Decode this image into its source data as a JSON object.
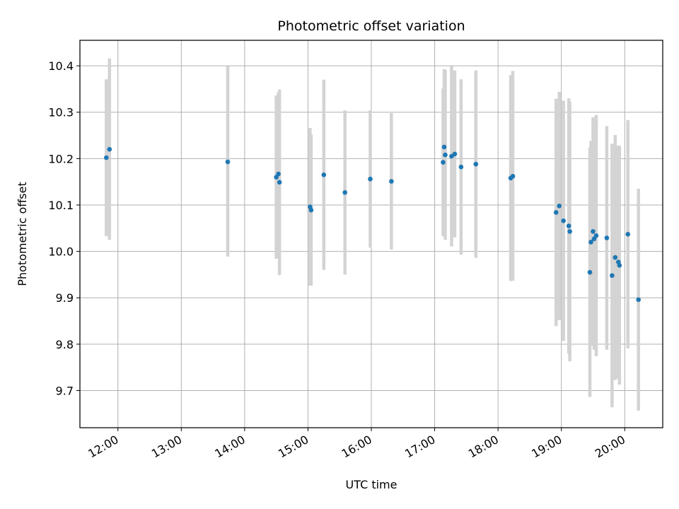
{
  "chart_data": {
    "type": "scatter",
    "title": "Photometric offset variation",
    "xlabel": "UTC time",
    "ylabel": "Photometric offset",
    "x_tick_labels": [
      "12:00",
      "13:00",
      "14:00",
      "15:00",
      "16:00",
      "17:00",
      "18:00",
      "19:00",
      "20:00"
    ],
    "y_tick_labels": [
      "9.7",
      "9.8",
      "9.9",
      "10.0",
      "10.1",
      "10.2",
      "10.3",
      "10.4"
    ],
    "x_ticks_hours": [
      12,
      13,
      14,
      15,
      16,
      17,
      18,
      19,
      20
    ],
    "y_ticks": [
      9.7,
      9.8,
      9.9,
      10.0,
      10.1,
      10.2,
      10.3,
      10.4
    ],
    "xlim_hours": [
      11.4,
      20.6
    ],
    "ylim": [
      9.62,
      10.455
    ],
    "grid": true,
    "point_color": "#1f77b4",
    "errorbar_color": "#d3d3d3",
    "points": [
      {
        "t": "11:49",
        "y": 10.202,
        "lo": 10.033,
        "hi": 10.371
      },
      {
        "t": "11:52",
        "y": 10.22,
        "lo": 10.025,
        "hi": 10.416
      },
      {
        "t": "13:44",
        "y": 10.193,
        "lo": 9.989,
        "hi": 10.399
      },
      {
        "t": "14:30",
        "y": 10.16,
        "lo": 9.984,
        "hi": 10.336
      },
      {
        "t": "14:32",
        "y": 10.167,
        "lo": 9.985,
        "hi": 10.343
      },
      {
        "t": "14:33",
        "y": 10.149,
        "lo": 9.949,
        "hi": 10.349
      },
      {
        "t": "15:02",
        "y": 10.096,
        "lo": 9.926,
        "hi": 10.266
      },
      {
        "t": "15:03",
        "y": 10.089,
        "lo": 9.926,
        "hi": 10.252
      },
      {
        "t": "15:15",
        "y": 10.165,
        "lo": 9.96,
        "hi": 10.37
      },
      {
        "t": "15:35",
        "y": 10.127,
        "lo": 9.95,
        "hi": 10.304
      },
      {
        "t": "15:59",
        "y": 10.156,
        "lo": 10.008,
        "hi": 10.304
      },
      {
        "t": "16:19",
        "y": 10.151,
        "lo": 10.004,
        "hi": 10.298
      },
      {
        "t": "17:08",
        "y": 10.192,
        "lo": 10.033,
        "hi": 10.351
      },
      {
        "t": "17:09",
        "y": 10.225,
        "lo": 10.057,
        "hi": 10.393
      },
      {
        "t": "17:10",
        "y": 10.208,
        "lo": 10.025,
        "hi": 10.391
      },
      {
        "t": "17:16",
        "y": 10.205,
        "lo": 10.011,
        "hi": 10.399
      },
      {
        "t": "17:19",
        "y": 10.21,
        "lo": 10.03,
        "hi": 10.39
      },
      {
        "t": "17:25",
        "y": 10.182,
        "lo": 9.993,
        "hi": 10.371
      },
      {
        "t": "17:39",
        "y": 10.188,
        "lo": 9.986,
        "hi": 10.39
      },
      {
        "t": "18:12",
        "y": 10.158,
        "lo": 9.936,
        "hi": 10.38
      },
      {
        "t": "18:14",
        "y": 10.162,
        "lo": 9.937,
        "hi": 10.389
      },
      {
        "t": "18:55",
        "y": 10.084,
        "lo": 9.839,
        "hi": 10.329
      },
      {
        "t": "18:58",
        "y": 10.098,
        "lo": 9.852,
        "hi": 10.344
      },
      {
        "t": "19:02",
        "y": 10.066,
        "lo": 9.807,
        "hi": 10.325
      },
      {
        "t": "19:07",
        "y": 10.055,
        "lo": 9.78,
        "hi": 10.33
      },
      {
        "t": "19:08",
        "y": 10.043,
        "lo": 9.763,
        "hi": 10.323
      },
      {
        "t": "19:27",
        "y": 9.955,
        "lo": 9.686,
        "hi": 10.224
      },
      {
        "t": "19:28",
        "y": 10.02,
        "lo": 9.802,
        "hi": 10.238
      },
      {
        "t": "19:30",
        "y": 10.043,
        "lo": 9.797,
        "hi": 10.289
      },
      {
        "t": "19:31",
        "y": 10.027,
        "lo": 9.788,
        "hi": 10.266
      },
      {
        "t": "19:33",
        "y": 10.034,
        "lo": 9.774,
        "hi": 10.294
      },
      {
        "t": "19:43",
        "y": 10.029,
        "lo": 9.788,
        "hi": 10.27
      },
      {
        "t": "19:48",
        "y": 9.948,
        "lo": 9.664,
        "hi": 10.232
      },
      {
        "t": "19:51",
        "y": 9.987,
        "lo": 9.723,
        "hi": 10.251
      },
      {
        "t": "19:54",
        "y": 9.977,
        "lo": 9.726,
        "hi": 10.228
      },
      {
        "t": "19:55",
        "y": 9.97,
        "lo": 9.713,
        "hi": 10.227
      },
      {
        "t": "20:03",
        "y": 10.037,
        "lo": 9.791,
        "hi": 10.283
      },
      {
        "t": "20:13",
        "y": 9.896,
        "lo": 9.657,
        "hi": 10.135
      }
    ]
  }
}
